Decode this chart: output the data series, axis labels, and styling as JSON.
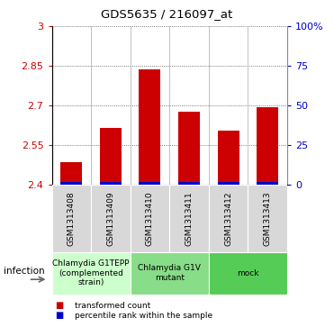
{
  "title": "GDS5635 / 216097_at",
  "samples": [
    "GSM1313408",
    "GSM1313409",
    "GSM1313410",
    "GSM1313411",
    "GSM1313412",
    "GSM1313413"
  ],
  "bar_values": [
    2.485,
    2.615,
    2.835,
    2.675,
    2.605,
    2.695
  ],
  "ylim": [
    2.4,
    3.0
  ],
  "yticks": [
    2.4,
    2.55,
    2.7,
    2.85,
    3.0
  ],
  "ytick_labels": [
    "2.4",
    "2.55",
    "2.7",
    "2.85",
    "3"
  ],
  "y2ticks": [
    0,
    25,
    50,
    75,
    100
  ],
  "y2tick_labels": [
    "0",
    "25",
    "50",
    "75",
    "100%"
  ],
  "bar_color": "#cc0000",
  "percentile_color": "#0000cc",
  "bar_base": 2.4,
  "group_defs": [
    {
      "indices": [
        0,
        1
      ],
      "label": "Chlamydia G1TEPP\n(complemented\nstrain)",
      "color": "#ccffcc"
    },
    {
      "indices": [
        2,
        3
      ],
      "label": "Chlamydia G1V\nmutant",
      "color": "#88dd88"
    },
    {
      "indices": [
        4,
        5
      ],
      "label": "mock",
      "color": "#55cc55"
    }
  ],
  "infection_label": "infection",
  "legend_items": [
    {
      "color": "#cc0000",
      "label": "transformed count"
    },
    {
      "color": "#0000cc",
      "label": "percentile rank within the sample"
    }
  ],
  "tick_color_left": "#cc0000",
  "tick_color_right": "#0000cc",
  "bar_width": 0.55,
  "fig_width": 3.71,
  "fig_height": 3.63
}
